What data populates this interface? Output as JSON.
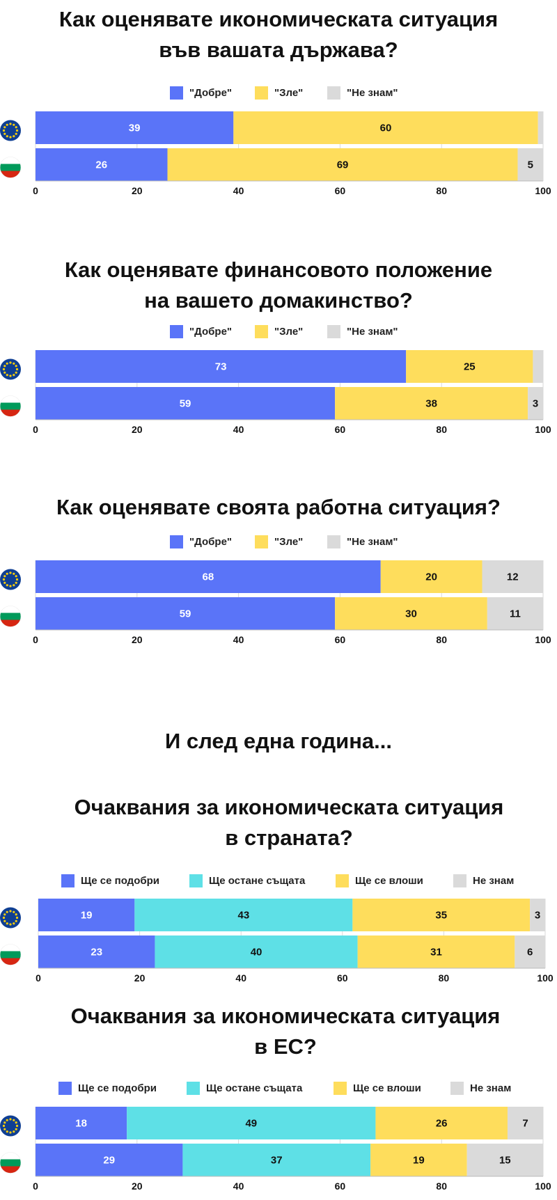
{
  "colors": {
    "good": "#5a74f8",
    "bad": "#fedd5c",
    "unknown": "#dadada",
    "same": "#5ee0e6",
    "eu_blue": "#0f3f93",
    "eu_star": "#f6cd0b",
    "bg_white": "#ffffff",
    "bg_green": "#009a5a",
    "bg_red": "#d62612"
  },
  "legends": {
    "three": [
      "\"Добре\"",
      "\"Зле\"",
      "\"Не знам\""
    ],
    "four": [
      "Ще се подобри",
      "Ще остане същата",
      "Ще се влоши",
      "Не знам"
    ]
  },
  "subheading": "И след една година...",
  "flags": [
    "eu-flag-icon",
    "bulgaria-flag-icon"
  ],
  "chart_data": [
    {
      "type": "bar",
      "orientation": "horizontal-stacked",
      "title": [
        "Как оценявате икономическата ситуация",
        "във вашата държава?"
      ],
      "categories": [
        "EU",
        "BG"
      ],
      "series": [
        {
          "name": "\"Добре\"",
          "values": [
            39,
            26
          ],
          "labels": [
            "39",
            "26"
          ]
        },
        {
          "name": "\"Зле\"",
          "values": [
            60,
            69
          ],
          "labels": [
            "60",
            "69"
          ]
        },
        {
          "name": "\"Не знам\"",
          "values": [
            1,
            5
          ],
          "labels": [
            "",
            "5"
          ]
        }
      ],
      "xlim": [
        0,
        100
      ],
      "xticks": [
        "0",
        "20",
        "40",
        "60",
        "80",
        "100"
      ],
      "legend": "top-center",
      "grid": true
    },
    {
      "type": "bar",
      "orientation": "horizontal-stacked",
      "title": [
        "Как оценявате финансовото положение",
        "на вашето домакинство?"
      ],
      "categories": [
        "EU",
        "BG"
      ],
      "series": [
        {
          "name": "\"Добре\"",
          "values": [
            73,
            59
          ],
          "labels": [
            "73",
            "59"
          ]
        },
        {
          "name": "\"Зле\"",
          "values": [
            25,
            38
          ],
          "labels": [
            "25",
            "38"
          ]
        },
        {
          "name": "\"Не знам\"",
          "values": [
            2,
            3
          ],
          "labels": [
            "",
            "3"
          ]
        }
      ],
      "xlim": [
        0,
        100
      ],
      "xticks": [
        "0",
        "20",
        "40",
        "60",
        "80",
        "100"
      ],
      "legend": "top-center",
      "grid": true
    },
    {
      "type": "bar",
      "orientation": "horizontal-stacked",
      "title": [
        "Как оценявате своята работна ситуация?"
      ],
      "categories": [
        "EU",
        "BG"
      ],
      "series": [
        {
          "name": "\"Добре\"",
          "values": [
            68,
            59
          ],
          "labels": [
            "68",
            "59"
          ]
        },
        {
          "name": "\"Зле\"",
          "values": [
            20,
            30
          ],
          "labels": [
            "20",
            "30"
          ]
        },
        {
          "name": "\"Не знам\"",
          "values": [
            12,
            11
          ],
          "labels": [
            "12",
            "11"
          ]
        }
      ],
      "xlim": [
        0,
        100
      ],
      "xticks": [
        "0",
        "20",
        "40",
        "60",
        "80",
        "100"
      ],
      "legend": "top-center",
      "grid": true
    },
    {
      "type": "bar",
      "orientation": "horizontal-stacked",
      "title": [
        "Очаквания за икономическата ситуация",
        "в страната?"
      ],
      "categories": [
        "EU",
        "BG"
      ],
      "series": [
        {
          "name": "Ще се подобри",
          "values": [
            19,
            23
          ],
          "labels": [
            "19",
            "23"
          ]
        },
        {
          "name": "Ще остане същата",
          "values": [
            43,
            40
          ],
          "labels": [
            "43",
            "40"
          ]
        },
        {
          "name": "Ще се влоши",
          "values": [
            35,
            31
          ],
          "labels": [
            "35",
            "31"
          ]
        },
        {
          "name": "Не знам",
          "values": [
            3,
            6
          ],
          "labels": [
            "3",
            "6"
          ]
        }
      ],
      "xlim": [
        0,
        100
      ],
      "xticks": [
        "0",
        "20",
        "40",
        "60",
        "80",
        "100"
      ],
      "legend": "top-center",
      "grid": true
    },
    {
      "type": "bar",
      "orientation": "horizontal-stacked",
      "title": [
        "Очаквания за икономическата ситуация",
        "в ЕС?"
      ],
      "categories": [
        "EU",
        "BG"
      ],
      "series": [
        {
          "name": "Ще се подобри",
          "values": [
            18,
            29
          ],
          "labels": [
            "18",
            "29"
          ]
        },
        {
          "name": "Ще остане същата",
          "values": [
            49,
            37
          ],
          "labels": [
            "49",
            "37"
          ]
        },
        {
          "name": "Ще се влоши",
          "values": [
            26,
            19
          ],
          "labels": [
            "26",
            "19"
          ]
        },
        {
          "name": "Не знам",
          "values": [
            7,
            15
          ],
          "labels": [
            "7",
            "15"
          ]
        }
      ],
      "xlim": [
        0,
        100
      ],
      "xticks": [
        "0",
        "20",
        "40",
        "60",
        "80",
        "100"
      ],
      "legend": "top-center",
      "grid": true
    }
  ]
}
